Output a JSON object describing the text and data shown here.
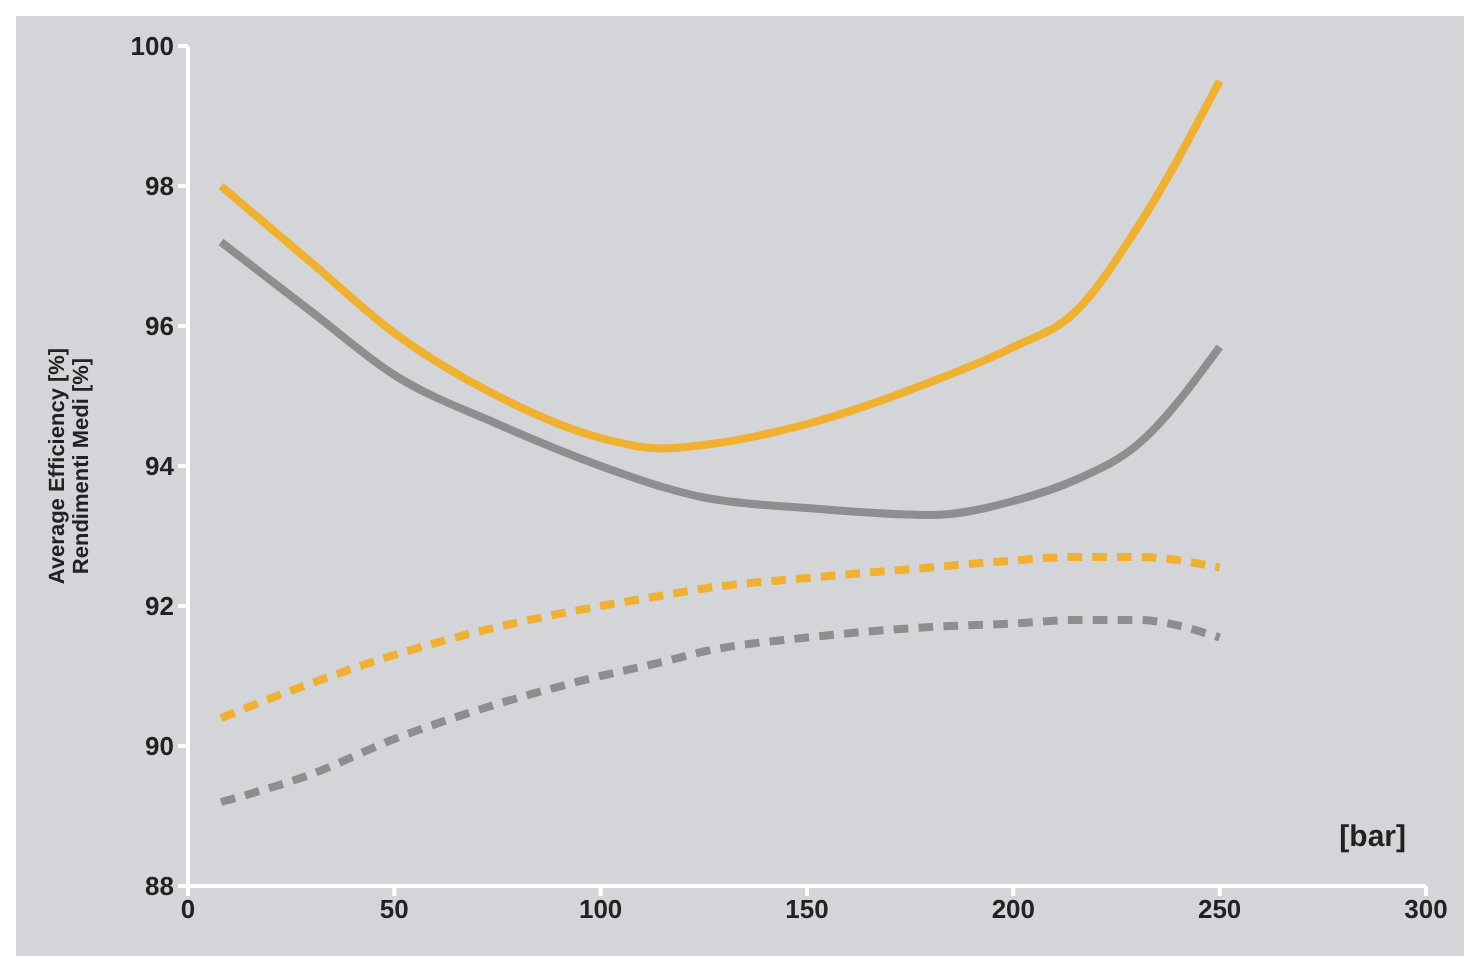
{
  "chart_data": {
    "type": "line",
    "ylabel": "Average Efficiency [%]\nRendimenti Medi [%]",
    "xlabel": "[bar]",
    "x": [
      8,
      30,
      50,
      75,
      100,
      115,
      125,
      150,
      180,
      200,
      215,
      230,
      250
    ],
    "series": [
      {
        "color": "#f0b030",
        "line_style": "solid",
        "values": [
          98.0,
          96.9,
          95.9,
          95.0,
          94.4,
          94.25,
          94.3,
          94.6,
          95.2,
          95.7,
          96.2,
          97.4,
          99.5
        ]
      },
      {
        "color": "#8e8e8e",
        "line_style": "solid",
        "values": [
          97.2,
          96.2,
          95.3,
          94.6,
          94.0,
          93.7,
          93.55,
          93.4,
          93.3,
          93.5,
          93.8,
          94.3,
          95.7
        ]
      },
      {
        "color": "#f0b030",
        "line_style": "dashed",
        "values": [
          90.4,
          90.9,
          91.3,
          91.7,
          92.0,
          92.15,
          92.25,
          92.4,
          92.55,
          92.65,
          92.7,
          92.7,
          92.55
        ]
      },
      {
        "color": "#8e8e8e",
        "line_style": "dashed",
        "values": [
          89.2,
          89.6,
          90.1,
          90.6,
          91.0,
          91.2,
          91.35,
          91.55,
          91.7,
          91.75,
          91.8,
          91.8,
          91.55
        ]
      }
    ],
    "xlim": [
      0,
      300
    ],
    "xticks": [
      0,
      50,
      100,
      150,
      200,
      250,
      300
    ],
    "ylim": [
      88,
      100
    ],
    "yticks": [
      88,
      90,
      92,
      94,
      96,
      98,
      100
    ],
    "grid": false,
    "legend": false,
    "marker": "none"
  }
}
